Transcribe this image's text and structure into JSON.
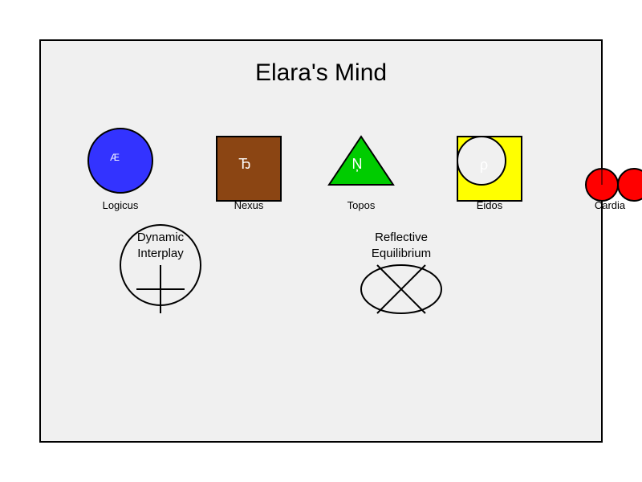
{
  "title": "Elara's Mind",
  "colors": {
    "panel_fill": "#f0f0f0",
    "panel_stroke": "#000000",
    "logicus": "#3333ff",
    "nexus": "#8b4513",
    "topos": "#00cc00",
    "eidos_square": "#ffff00",
    "eidos_circle": "#f0f0f0",
    "cardia": "#ff0000"
  },
  "symbols": [
    {
      "id": "logicus",
      "label": "Logicus",
      "glyph": "Æ",
      "shape": "circle"
    },
    {
      "id": "nexus",
      "label": "Nexus",
      "glyph": "Ђ",
      "shape": "square"
    },
    {
      "id": "topos",
      "label": "Topos",
      "glyph": "Ņ",
      "shape": "triangle"
    },
    {
      "id": "eidos",
      "label": "Eidos",
      "glyph": "ρ",
      "shape": "square-with-circle"
    },
    {
      "id": "cardia",
      "label": "Cardia",
      "glyph": "",
      "shape": "heart"
    }
  ],
  "concepts": [
    {
      "id": "dynamic-interplay",
      "lines": [
        "Dynamic",
        "Interplay"
      ],
      "shape": "circle-with-cross"
    },
    {
      "id": "reflective-equilibrium",
      "lines": [
        "Reflective",
        "Equilibrium"
      ],
      "shape": "ellipse-with-x"
    }
  ]
}
